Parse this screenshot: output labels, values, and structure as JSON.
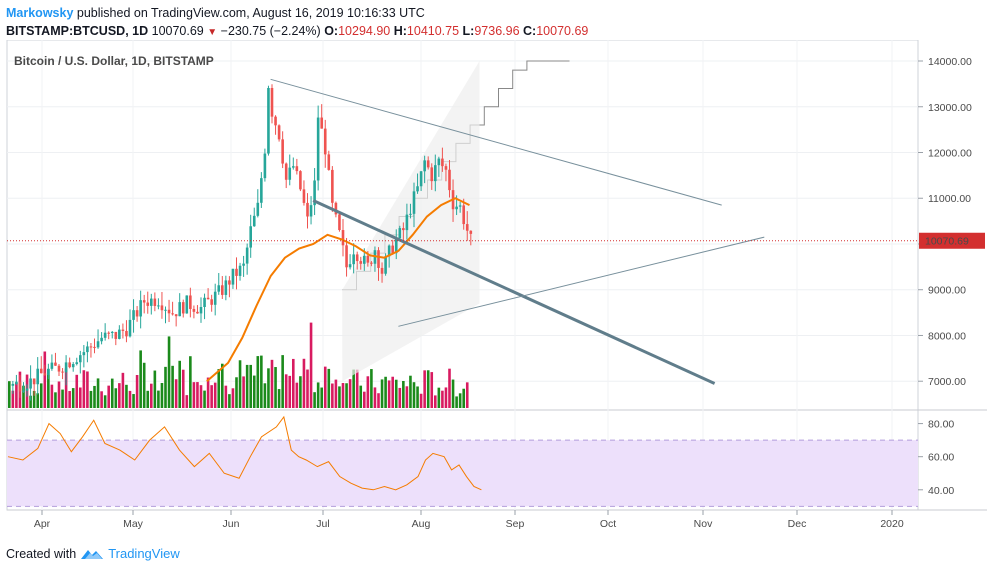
{
  "header": {
    "author": "Markowsky",
    "published_text": "published on TradingView.com, August 16, 2019 10:16:33 UTC",
    "symbol": "BITSTAMP:BTCUSD, 1D",
    "last_price": "10070.69",
    "change": "−230.75 (−2.24%)",
    "o_label": "O:",
    "o_value": "10294.90",
    "h_label": "H:",
    "h_value": "10410.75",
    "l_label": "L:",
    "l_value": "9736.96",
    "c_label": "C:",
    "c_value": "10070.69"
  },
  "chart_title": "Bitcoin / U.S. Dollar, 1D, BITSTAMP",
  "price_label": "10070.69",
  "footer": {
    "created_with": "Created with",
    "brand": "TradingView"
  },
  "colors": {
    "up": "#26a69a",
    "down": "#ef5350",
    "vol_up": "#1b8a1b",
    "vol_down": "#d81b60",
    "ema": "#f57c00",
    "rsi": "#f57c00",
    "rsi_band": "#ede0fb",
    "price_line": "#d32f2f"
  },
  "chart_data": {
    "type": "candlestick",
    "x_ticks": [
      "Apr",
      "May",
      "Jun",
      "Jul",
      "Aug",
      "Sep",
      "Oct",
      "Nov",
      "Dec",
      "2020"
    ],
    "y_ticks": [
      "14000.00",
      "13000.00",
      "12000.00",
      "11000.00",
      "10000.00",
      "9000.00",
      "8000.00",
      "7000.00"
    ],
    "y_range": [
      6480,
      14350
    ],
    "rsi_ticks": [
      "80.00",
      "60.00",
      "40.00"
    ],
    "rsi_range": [
      29,
      87
    ],
    "last_close": 10070.69,
    "price_series": [
      [
        0,
        6900
      ],
      [
        6,
        7000
      ],
      [
        10,
        7200
      ],
      [
        14,
        7300
      ],
      [
        18,
        7500
      ],
      [
        22,
        7700
      ],
      [
        26,
        7950
      ],
      [
        30,
        8000
      ],
      [
        33,
        8150
      ],
      [
        38,
        8750
      ],
      [
        42,
        8800
      ],
      [
        46,
        8500
      ],
      [
        50,
        8700
      ],
      [
        54,
        8600
      ],
      [
        57,
        8800
      ],
      [
        60,
        9000
      ],
      [
        63,
        9300
      ],
      [
        66,
        9500
      ],
      [
        68,
        10300
      ],
      [
        70,
        10800
      ],
      [
        72,
        12100
      ],
      [
        73,
        13500
      ],
      [
        74,
        12900
      ],
      [
        76,
        12400
      ],
      [
        78,
        11400
      ],
      [
        80,
        11700
      ],
      [
        82,
        11200
      ],
      [
        84,
        10500
      ],
      [
        86,
        11300
      ],
      [
        87,
        12800
      ],
      [
        89,
        12100
      ],
      [
        91,
        10800
      ],
      [
        93,
        10200
      ],
      [
        95,
        9500
      ],
      [
        97,
        9900
      ],
      [
        99,
        9700
      ],
      [
        101,
        9500
      ],
      [
        103,
        9900
      ],
      [
        105,
        9400
      ],
      [
        107,
        9800
      ],
      [
        109,
        10100
      ],
      [
        111,
        10300
      ],
      [
        113,
        10800
      ],
      [
        115,
        11200
      ],
      [
        117,
        11800
      ],
      [
        119,
        11500
      ],
      [
        121,
        11800
      ],
      [
        123,
        11600
      ],
      [
        125,
        10900
      ],
      [
        127,
        10800
      ],
      [
        129,
        10300
      ],
      [
        130,
        10070
      ]
    ],
    "ema_series": [
      [
        56,
        7000
      ],
      [
        62,
        7400
      ],
      [
        66,
        7950
      ],
      [
        70,
        8650
      ],
      [
        74,
        9300
      ],
      [
        78,
        9700
      ],
      [
        82,
        9900
      ],
      [
        86,
        10000
      ],
      [
        90,
        10200
      ],
      [
        94,
        10100
      ],
      [
        98,
        9950
      ],
      [
        102,
        9750
      ],
      [
        106,
        9700
      ],
      [
        110,
        9850
      ],
      [
        114,
        10200
      ],
      [
        118,
        10600
      ],
      [
        122,
        10850
      ],
      [
        126,
        11000
      ],
      [
        130,
        10850
      ]
    ],
    "rsi_series": [
      [
        0,
        60
      ],
      [
        4,
        58
      ],
      [
        8,
        65
      ],
      [
        11,
        80
      ],
      [
        14,
        74
      ],
      [
        17,
        63
      ],
      [
        20,
        72
      ],
      [
        23,
        82
      ],
      [
        26,
        68
      ],
      [
        30,
        64
      ],
      [
        34,
        58
      ],
      [
        38,
        70
      ],
      [
        42,
        78
      ],
      [
        46,
        64
      ],
      [
        50,
        54
      ],
      [
        54,
        62
      ],
      [
        58,
        50
      ],
      [
        62,
        47
      ],
      [
        65,
        60
      ],
      [
        68,
        72
      ],
      [
        72,
        78
      ],
      [
        74,
        84
      ],
      [
        76,
        64
      ],
      [
        78,
        60
      ],
      [
        80,
        58
      ],
      [
        83,
        54
      ],
      [
        86,
        57
      ],
      [
        89,
        48
      ],
      [
        92,
        44
      ],
      [
        95,
        41
      ],
      [
        98,
        40
      ],
      [
        101,
        42
      ],
      [
        104,
        40
      ],
      [
        107,
        43
      ],
      [
        110,
        48
      ],
      [
        112,
        58
      ],
      [
        114,
        62
      ],
      [
        117,
        60
      ],
      [
        119,
        52
      ],
      [
        121,
        55
      ],
      [
        123,
        48
      ],
      [
        125,
        42
      ],
      [
        127,
        40
      ]
    ],
    "resistance_line": [
      [
        12.0,
        13600
      ],
      [
        94.0,
        10850
      ]
    ],
    "support_line_1": [
      [
        24.0,
        10950
      ],
      [
        92.0,
        6950
      ]
    ],
    "support_line_2": [
      [
        48.0,
        8200
      ],
      [
        106.0,
        10150
      ]
    ],
    "rising_steps": [
      [
        66,
        9000
      ],
      [
        70,
        9400
      ],
      [
        74,
        9800
      ],
      [
        78,
        10200
      ],
      [
        82,
        10600
      ],
      [
        86,
        11000
      ],
      [
        90,
        11400
      ],
      [
        94,
        11800
      ],
      [
        98,
        12200
      ],
      [
        102,
        12600
      ],
      [
        106,
        13000
      ],
      [
        110,
        13400
      ],
      [
        114,
        13800
      ],
      [
        118,
        14000
      ],
      [
        130,
        14000
      ]
    ]
  }
}
